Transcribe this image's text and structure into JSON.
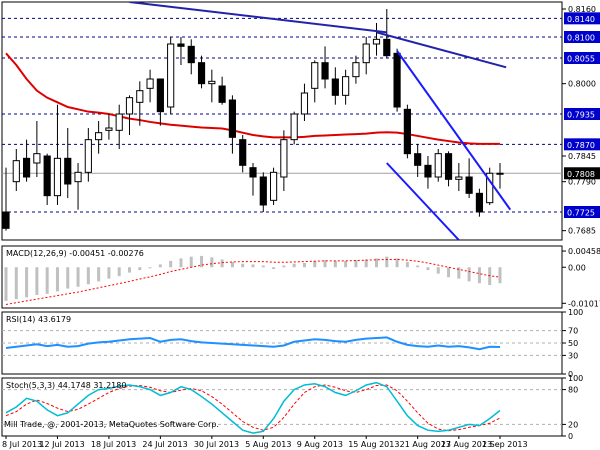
{
  "colors": {
    "background": "#ffffff",
    "frame": "#000000",
    "grid": "#c8c8c8",
    "level_line": "#00008b",
    "level_badge": "#0000cc",
    "current_badge": "#000000",
    "candle_up": "#ffffff",
    "candle_down": "#000000",
    "moving_average": "#dd0000",
    "trend_channel": "#1a1aff",
    "resistance": "#2222aa",
    "macd_hist": "#c0c0c0",
    "macd_signal": "#ff0000",
    "rsi_line": "#1e90ff",
    "stoch_main": "#00bcd4",
    "stoch_signal": "#ff0000",
    "osc_level": "#b0b0b0"
  },
  "chart_data": [
    {
      "type": "candlestick",
      "panel": "price",
      "y_axis_labels": [
        {
          "value": 0.816,
          "text": "0.8160"
        },
        {
          "value": 0.8,
          "text": "0.8000"
        },
        {
          "value": 0.7845,
          "text": "0.7845"
        },
        {
          "value": 0.779,
          "text": "0.7790"
        },
        {
          "value": 0.7685,
          "text": "0.7685"
        }
      ],
      "level_badges": [
        {
          "value": 0.814,
          "text": "0.8140"
        },
        {
          "value": 0.81,
          "text": "0.8100"
        },
        {
          "value": 0.8055,
          "text": "0.8055"
        },
        {
          "value": 0.7935,
          "text": "0.7935"
        },
        {
          "value": 0.787,
          "text": "0.7870"
        },
        {
          "value": 0.7725,
          "text": "0.7725"
        }
      ],
      "current_price": {
        "value": 0.7808,
        "text": "0.7808"
      },
      "ylim": [
        0.7665,
        0.8175
      ],
      "horizontal_levels": [
        0.814,
        0.81,
        0.8055,
        0.7935,
        0.787,
        0.7725
      ],
      "candles": [
        {
          "o": 0.7725,
          "h": 0.782,
          "l": 0.7685,
          "c": 0.769
        },
        {
          "o": 0.779,
          "h": 0.786,
          "l": 0.777,
          "c": 0.7835
        },
        {
          "o": 0.784,
          "h": 0.788,
          "l": 0.779,
          "c": 0.78
        },
        {
          "o": 0.783,
          "h": 0.792,
          "l": 0.78,
          "c": 0.785
        },
        {
          "o": 0.7845,
          "h": 0.785,
          "l": 0.774,
          "c": 0.776
        },
        {
          "o": 0.776,
          "h": 0.7955,
          "l": 0.774,
          "c": 0.784
        },
        {
          "o": 0.784,
          "h": 0.7905,
          "l": 0.7755,
          "c": 0.7785
        },
        {
          "o": 0.779,
          "h": 0.783,
          "l": 0.773,
          "c": 0.781
        },
        {
          "o": 0.781,
          "h": 0.7905,
          "l": 0.779,
          "c": 0.788
        },
        {
          "o": 0.788,
          "h": 0.792,
          "l": 0.785,
          "c": 0.7895
        },
        {
          "o": 0.79,
          "h": 0.7935,
          "l": 0.788,
          "c": 0.7905
        },
        {
          "o": 0.79,
          "h": 0.7955,
          "l": 0.786,
          "c": 0.7935
        },
        {
          "o": 0.7935,
          "h": 0.7975,
          "l": 0.789,
          "c": 0.797
        },
        {
          "o": 0.796,
          "h": 0.8005,
          "l": 0.791,
          "c": 0.7985
        },
        {
          "o": 0.799,
          "h": 0.803,
          "l": 0.796,
          "c": 0.801
        },
        {
          "o": 0.801,
          "h": 0.801,
          "l": 0.791,
          "c": 0.794
        },
        {
          "o": 0.795,
          "h": 0.81,
          "l": 0.7935,
          "c": 0.8085
        },
        {
          "o": 0.8085,
          "h": 0.81,
          "l": 0.804,
          "c": 0.808
        },
        {
          "o": 0.808,
          "h": 0.8095,
          "l": 0.802,
          "c": 0.8045
        },
        {
          "o": 0.8045,
          "h": 0.806,
          "l": 0.799,
          "c": 0.8
        },
        {
          "o": 0.8,
          "h": 0.803,
          "l": 0.796,
          "c": 0.8005
        },
        {
          "o": 0.7995,
          "h": 0.8015,
          "l": 0.7955,
          "c": 0.796
        },
        {
          "o": 0.7965,
          "h": 0.7975,
          "l": 0.785,
          "c": 0.7885
        },
        {
          "o": 0.788,
          "h": 0.789,
          "l": 0.781,
          "c": 0.7825
        },
        {
          "o": 0.782,
          "h": 0.783,
          "l": 0.776,
          "c": 0.78
        },
        {
          "o": 0.78,
          "h": 0.781,
          "l": 0.7725,
          "c": 0.774
        },
        {
          "o": 0.775,
          "h": 0.782,
          "l": 0.774,
          "c": 0.781
        },
        {
          "o": 0.78,
          "h": 0.79,
          "l": 0.777,
          "c": 0.788
        },
        {
          "o": 0.788,
          "h": 0.794,
          "l": 0.787,
          "c": 0.7935
        },
        {
          "o": 0.7935,
          "h": 0.8,
          "l": 0.792,
          "c": 0.798
        },
        {
          "o": 0.799,
          "h": 0.805,
          "l": 0.796,
          "c": 0.8045
        },
        {
          "o": 0.8045,
          "h": 0.808,
          "l": 0.799,
          "c": 0.801
        },
        {
          "o": 0.801,
          "h": 0.8035,
          "l": 0.7955,
          "c": 0.7975
        },
        {
          "o": 0.7975,
          "h": 0.803,
          "l": 0.7955,
          "c": 0.8015
        },
        {
          "o": 0.8015,
          "h": 0.806,
          "l": 0.8,
          "c": 0.8045
        },
        {
          "o": 0.8045,
          "h": 0.81,
          "l": 0.802,
          "c": 0.8085
        },
        {
          "o": 0.8085,
          "h": 0.813,
          "l": 0.806,
          "c": 0.8095
        },
        {
          "o": 0.8095,
          "h": 0.816,
          "l": 0.8055,
          "c": 0.806
        },
        {
          "o": 0.8065,
          "h": 0.8075,
          "l": 0.794,
          "c": 0.795
        },
        {
          "o": 0.7945,
          "h": 0.7955,
          "l": 0.784,
          "c": 0.785
        },
        {
          "o": 0.785,
          "h": 0.787,
          "l": 0.78,
          "c": 0.7825
        },
        {
          "o": 0.7825,
          "h": 0.7845,
          "l": 0.7775,
          "c": 0.78
        },
        {
          "o": 0.78,
          "h": 0.786,
          "l": 0.779,
          "c": 0.785
        },
        {
          "o": 0.785,
          "h": 0.7855,
          "l": 0.778,
          "c": 0.7795
        },
        {
          "o": 0.7795,
          "h": 0.783,
          "l": 0.777,
          "c": 0.78
        },
        {
          "o": 0.78,
          "h": 0.784,
          "l": 0.7755,
          "c": 0.7765
        },
        {
          "o": 0.7765,
          "h": 0.7775,
          "l": 0.7715,
          "c": 0.7725
        },
        {
          "o": 0.7745,
          "h": 0.782,
          "l": 0.774,
          "c": 0.7808
        },
        {
          "o": 0.7808,
          "h": 0.783,
          "l": 0.7775,
          "c": 0.7808
        }
      ],
      "moving_average": [
        0.8065,
        0.804,
        0.801,
        0.7985,
        0.797,
        0.796,
        0.795,
        0.7945,
        0.794,
        0.7938,
        0.7935,
        0.793,
        0.7925,
        0.7922,
        0.7918,
        0.7915,
        0.7912,
        0.791,
        0.7908,
        0.7906,
        0.7905,
        0.7904,
        0.79,
        0.7895,
        0.789,
        0.7887,
        0.7885,
        0.7885,
        0.7885,
        0.7886,
        0.7888,
        0.7889,
        0.789,
        0.7891,
        0.7892,
        0.7893,
        0.7895,
        0.7896,
        0.7895,
        0.7892,
        0.7888,
        0.7884,
        0.788,
        0.7877,
        0.7874,
        0.7872,
        0.7871,
        0.7871,
        0.7871
      ],
      "trend_lines": [
        {
          "x0": 12.0,
          "y0": 0.8175,
          "x1": 37.0,
          "y1": 0.811
        },
        {
          "x0": 36.0,
          "y0": 0.811,
          "x1": 48.6,
          "y1": 0.8035
        },
        {
          "x0": 38.0,
          "y0": 0.807,
          "x1": 49.0,
          "y1": 0.773
        },
        {
          "x0": 37.0,
          "y0": 0.783,
          "x1": 44.0,
          "y1": 0.7665
        }
      ]
    },
    {
      "type": "histogram",
      "panel": "macd",
      "title": "MACD(12,26,9) -0.00451 -0.00276",
      "y_axis_labels": [
        {
          "value": 0.00458,
          "text": "0.00458"
        },
        {
          "value": 0.0,
          "text": "0.00"
        },
        {
          "value": -0.01017,
          "text": "-0.01017"
        }
      ],
      "ylim": [
        -0.0115,
        0.006
      ],
      "histogram": [
        -0.0095,
        -0.009,
        -0.0085,
        -0.0078,
        -0.0075,
        -0.0068,
        -0.006,
        -0.0055,
        -0.0048,
        -0.004,
        -0.0032,
        -0.0025,
        -0.0015,
        -0.0008,
        0.0,
        0.0008,
        0.0018,
        0.0025,
        0.003,
        0.0032,
        0.0028,
        0.0022,
        0.0015,
        0.001,
        0.0008,
        0.0005,
        -0.0005,
        0.0005,
        0.001,
        0.0012,
        0.0018,
        0.002,
        0.0018,
        0.0018,
        0.002,
        0.0022,
        0.0025,
        0.003,
        0.0025,
        0.0015,
        0.0005,
        -0.0008,
        -0.0018,
        -0.0028,
        -0.0032,
        -0.004,
        -0.0045,
        -0.005,
        -0.0045
      ],
      "signal": [
        -0.0105,
        -0.01,
        -0.0095,
        -0.009,
        -0.0085,
        -0.008,
        -0.0075,
        -0.007,
        -0.0064,
        -0.0058,
        -0.0052,
        -0.0046,
        -0.004,
        -0.0033,
        -0.0027,
        -0.002,
        -0.0012,
        -0.0006,
        0.0,
        0.0006,
        0.001,
        0.0013,
        0.0015,
        0.0016,
        0.0016,
        0.0016,
        0.0014,
        0.0014,
        0.0015,
        0.0016,
        0.0017,
        0.0018,
        0.0018,
        0.0018,
        0.0019,
        0.002,
        0.0021,
        0.0022,
        0.0022,
        0.002,
        0.0017,
        0.0012,
        0.0006,
        0.0,
        -0.0006,
        -0.0012,
        -0.0018,
        -0.0024,
        -0.0028
      ]
    },
    {
      "type": "line",
      "panel": "rsi",
      "title": "RSI(14) 43.6179",
      "y_axis_labels": [
        {
          "value": 100,
          "text": "100"
        },
        {
          "value": 70,
          "text": "70"
        },
        {
          "value": 50,
          "text": "50"
        },
        {
          "value": 30,
          "text": "30"
        },
        {
          "value": 0,
          "text": "0"
        }
      ],
      "levels": [
        70,
        50,
        30
      ],
      "ylim": [
        0,
        100
      ],
      "values": [
        42,
        44,
        46,
        48,
        45,
        47,
        44,
        45,
        49,
        51,
        52,
        54,
        56,
        57,
        58,
        52,
        55,
        56,
        53,
        51,
        50,
        49,
        48,
        47,
        46,
        45,
        44,
        46,
        52,
        54,
        56,
        55,
        53,
        52,
        55,
        57,
        58,
        59,
        52,
        47,
        45,
        44,
        46,
        44,
        45,
        43,
        40,
        44,
        43.6
      ]
    },
    {
      "type": "line",
      "panel": "stochastic",
      "title": "Stoch(5,3,3) 44.1748 31.2180",
      "y_axis_labels": [
        {
          "value": 100,
          "text": "100"
        },
        {
          "value": 80,
          "text": "80"
        },
        {
          "value": 20,
          "text": "20"
        },
        {
          "value": 0,
          "text": "0"
        }
      ],
      "levels": [
        80,
        20
      ],
      "ylim": [
        0,
        100
      ],
      "main": [
        40,
        50,
        65,
        60,
        45,
        35,
        40,
        55,
        70,
        80,
        82,
        86,
        88,
        85,
        80,
        70,
        75,
        85,
        80,
        68,
        55,
        40,
        25,
        10,
        5,
        8,
        30,
        60,
        80,
        88,
        90,
        85,
        75,
        70,
        78,
        88,
        92,
        85,
        60,
        35,
        18,
        10,
        8,
        10,
        15,
        20,
        18,
        30,
        44
      ],
      "signal": [
        35,
        42,
        55,
        62,
        56,
        48,
        42,
        46,
        55,
        65,
        75,
        82,
        86,
        87,
        84,
        78,
        75,
        79,
        82,
        78,
        68,
        55,
        40,
        25,
        15,
        10,
        15,
        32,
        55,
        75,
        85,
        88,
        84,
        78,
        75,
        80,
        87,
        88,
        78,
        60,
        40,
        22,
        12,
        9,
        11,
        15,
        18,
        22,
        31
      ]
    }
  ],
  "x_axis_labels": [
    {
      "index": 0,
      "text": "8 Jul 2013"
    },
    {
      "index": 5,
      "text": "12 Jul 2013"
    },
    {
      "index": 10,
      "text": "18 Jul 2013"
    },
    {
      "index": 15,
      "text": "24 Jul 2013"
    },
    {
      "index": 20,
      "text": "30 Jul 2013"
    },
    {
      "index": 25,
      "text": "5 Aug 2013"
    },
    {
      "index": 30,
      "text": "9 Aug 2013"
    },
    {
      "index": 35,
      "text": "15 Aug 2013"
    },
    {
      "index": 40,
      "text": "21 Aug 2013"
    },
    {
      "index": 44,
      "text": "27 Aug 2013"
    },
    {
      "index": 48,
      "text": "2 Sep 2013"
    }
  ],
  "footer_text": "Mill Trade, @, 2001-2013, MetaQuotes Software Corp."
}
